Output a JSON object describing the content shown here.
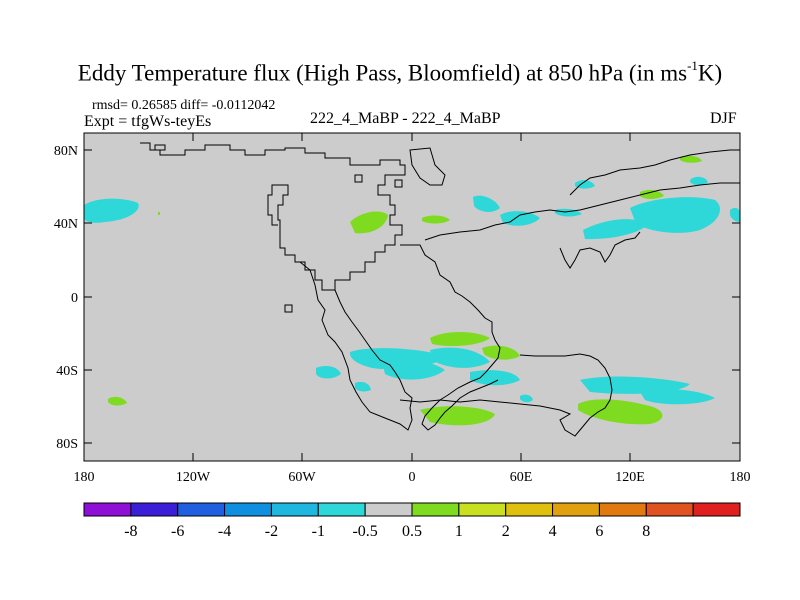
{
  "title_main": "Eddy Temperature flux (High Pass, Bloomfield) at 850 hPa (in ms",
  "title_sup": "-1",
  "title_end": "K)",
  "stats_line": "rmsd= 0.26585 diff= -0.0112042",
  "expt_line": "Expt = tfgWs-teyEs",
  "center_label": "222_4_MaBP - 222_4_MaBP",
  "season_label": "DJF",
  "lat_labels": [
    "80N",
    "40N",
    "0",
    "40S",
    "80S"
  ],
  "lon_labels": [
    "180",
    "120W",
    "60W",
    "0",
    "60E",
    "120E",
    "180"
  ],
  "colorbar": {
    "colors": [
      "#8f0fd6",
      "#3b1fd8",
      "#1f5fe0",
      "#0f8fe0",
      "#1fb6e0",
      "#2fd8d8",
      "#cccccc",
      "#7fdb1f",
      "#c8e01f",
      "#e0c00f",
      "#e0a00f",
      "#e07a0f",
      "#e0521f",
      "#e01f1f"
    ],
    "labels": [
      "-8",
      "-6",
      "-4",
      "-2",
      "-1",
      "-0.5",
      "0.5",
      "1",
      "2",
      "4",
      "6",
      "8"
    ]
  },
  "colors": {
    "land_background": "#cccccc",
    "negative_fill": "#2fd8d8",
    "positive_fill": "#7fdb1f",
    "coast": "#000000"
  }
}
